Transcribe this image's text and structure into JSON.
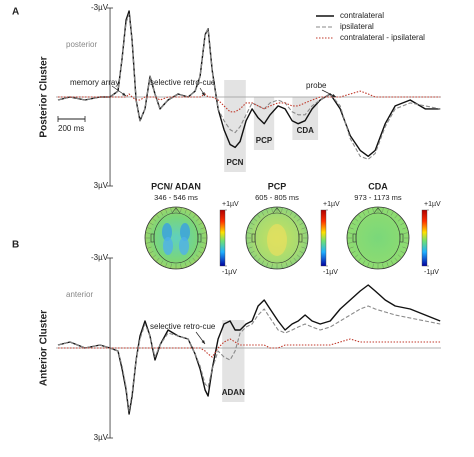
{
  "chart_data": [
    {
      "type": "line",
      "panel": "A",
      "ylabel": "Posterior Cluster",
      "region": "posterior",
      "xlim": [
        -400,
        2450
      ],
      "ylim": [
        3,
        -3
      ],
      "yticks": [
        {
          "value": -3,
          "label": "-3µV"
        },
        {
          "value": 3,
          "label": "3µV"
        }
      ],
      "x": [
        -385,
        -296,
        -185,
        -74,
        0,
        59,
        89,
        119,
        141,
        163,
        193,
        222,
        259,
        296,
        333,
        370,
        430,
        504,
        578,
        630,
        667,
        704,
        726,
        756,
        800,
        844,
        889,
        926,
        963,
        1007,
        1052,
        1096,
        1141,
        1185,
        1244,
        1296,
        1348,
        1393,
        1444,
        1496,
        1556,
        1630,
        1704,
        1778,
        1852,
        1911,
        1963,
        2037,
        2111,
        2222,
        2333,
        2444
      ],
      "legend": "upper right",
      "series": [
        {
          "name": "contralateral",
          "color": "#111111",
          "dash": "solid",
          "values": [
            0.1,
            0,
            0.1,
            0,
            0,
            -0.2,
            -1.3,
            -2.6,
            -2.9,
            -1.9,
            0.1,
            0.8,
            0.4,
            -0.7,
            -0.1,
            0.4,
            0.1,
            -0.1,
            0,
            -0.2,
            -0.7,
            -2.1,
            -2.3,
            -0.9,
            0.4,
            1.1,
            1.6,
            1.7,
            1.5,
            0.8,
            0.4,
            0.7,
            0.9,
            0.6,
            0.3,
            0.4,
            0.8,
            0.9,
            0.8,
            0.4,
            0.1,
            -0.1,
            0.4,
            1.3,
            1.8,
            2.0,
            1.8,
            0.9,
            0.3,
            0.1,
            0.4,
            0.4
          ]
        },
        {
          "name": "ipsilateral",
          "color": "#8a8a8a",
          "dash": "dashed",
          "values": [
            0.1,
            0,
            0.1,
            0,
            0,
            -0.2,
            -1.3,
            -2.5,
            -2.8,
            -1.9,
            0.1,
            0.8,
            0.4,
            -0.7,
            -0.1,
            0.4,
            0.1,
            -0.1,
            0,
            -0.2,
            -0.7,
            -2.1,
            -2.3,
            -0.9,
            0.4,
            0.8,
            1.1,
            1.2,
            1.0,
            0.6,
            0.2,
            0.3,
            0.4,
            0.2,
            0.1,
            0.2,
            0.5,
            0.6,
            0.6,
            0.3,
            0.1,
            -0.1,
            0.3,
            1.4,
            2.0,
            2.1,
            1.9,
            1.0,
            0.4,
            0.2,
            0.3,
            0.4
          ]
        },
        {
          "name": "contralateral - ipsilateral",
          "color": "#c0392b",
          "dash": "dotted",
          "values": [
            0,
            0,
            0,
            0,
            0,
            0,
            0,
            0,
            -0.1,
            0,
            0.1,
            0.1,
            0,
            0,
            0,
            0.1,
            0,
            0,
            0,
            0,
            0,
            -0.1,
            0,
            0,
            0.1,
            0.3,
            0.5,
            0.5,
            0.4,
            0.2,
            0.2,
            0.3,
            0.4,
            0.3,
            0.2,
            0.2,
            0.3,
            0.3,
            0.2,
            0.1,
            0,
            0,
            0,
            -0.1,
            -0.2,
            -0.1,
            0,
            0,
            0,
            0,
            0,
            0
          ]
        }
      ],
      "windows": [
        {
          "label": "PCN",
          "range": [
            845,
            1005
          ]
        },
        {
          "label": "PCP",
          "range": [
            1065,
            1215
          ]
        },
        {
          "label": "CDA",
          "range": [
            1350,
            1540
          ]
        }
      ],
      "annotations": [
        "memory array",
        "selective retro-cue",
        "probe"
      ],
      "scalebar": {
        "value": 200,
        "label": "200 ms"
      }
    },
    {
      "type": "line",
      "panel": "B",
      "ylabel": "Anterior Cluster",
      "region": "anterior",
      "xlim": [
        -400,
        2450
      ],
      "ylim": [
        3,
        -3
      ],
      "yticks": [
        {
          "value": -3,
          "label": "-3µV"
        },
        {
          "value": 3,
          "label": "3µV"
        }
      ],
      "x": [
        -385,
        -296,
        -185,
        -74,
        0,
        59,
        89,
        119,
        141,
        163,
        193,
        222,
        259,
        296,
        333,
        370,
        430,
        504,
        578,
        630,
        667,
        704,
        726,
        756,
        800,
        844,
        889,
        926,
        963,
        1007,
        1052,
        1096,
        1141,
        1185,
        1244,
        1296,
        1348,
        1393,
        1444,
        1496,
        1556,
        1630,
        1704,
        1778,
        1852,
        1911,
        1963,
        2037,
        2111,
        2222,
        2333,
        2444
      ],
      "series": [
        {
          "color": "#111111",
          "dash": "solid",
          "values": [
            -0.1,
            -0.2,
            0,
            -0.1,
            0,
            0.1,
            0.7,
            1.4,
            2.2,
            1.6,
            0.4,
            -0.4,
            -0.9,
            -0.4,
            0.4,
            -0.1,
            -0.6,
            -0.4,
            -0.3,
            0.2,
            0.7,
            1.4,
            1.6,
            0.7,
            -0.3,
            -0.8,
            -0.9,
            -0.6,
            -0.6,
            -0.8,
            -0.9,
            -1.4,
            -1.6,
            -1.3,
            -0.9,
            -0.6,
            -0.8,
            -0.9,
            -1.1,
            -0.9,
            -0.8,
            -0.9,
            -1.3,
            -1.6,
            -1.9,
            -2.1,
            -1.9,
            -1.6,
            -1.4,
            -1.3,
            -1.1,
            -0.9
          ]
        },
        {
          "color": "#8a8a8a",
          "dash": "dashed",
          "values": [
            -0.1,
            -0.2,
            0,
            -0.1,
            0,
            0.1,
            0.6,
            1.3,
            2.1,
            1.5,
            0.4,
            -0.3,
            -0.8,
            -0.4,
            0.3,
            -0.1,
            -0.5,
            -0.4,
            -0.3,
            0.2,
            0.6,
            1.2,
            1.3,
            0.7,
            0.1,
            0.3,
            0.4,
            0.1,
            -0.5,
            -0.7,
            -0.8,
            -1.1,
            -1.3,
            -1.0,
            -0.6,
            -0.5,
            -0.6,
            -0.7,
            -0.8,
            -0.7,
            -0.6,
            -0.7,
            -0.9,
            -1.1,
            -1.3,
            -1.4,
            -1.3,
            -1.2,
            -1.1,
            -1.0,
            -0.9,
            -0.8
          ]
        },
        {
          "color": "#c0392b",
          "dash": "dotted",
          "values": [
            0,
            0,
            0,
            0,
            0,
            0,
            0,
            0,
            0,
            0,
            0,
            0,
            0,
            0,
            0,
            0,
            0,
            0,
            0,
            0,
            0,
            0.1,
            0.2,
            0.3,
            0,
            -0.2,
            -0.3,
            -0.2,
            -0.1,
            -0.1,
            -0.1,
            -0.1,
            -0.1,
            0,
            0,
            -0.1,
            -0.1,
            -0.1,
            -0.1,
            -0.1,
            -0.1,
            -0.1,
            -0.2,
            -0.3,
            -0.2,
            -0.2,
            -0.2,
            -0.2,
            -0.2,
            -0.2,
            -0.2,
            -0.2
          ]
        }
      ],
      "windows": [
        {
          "label": "ADAN",
          "range": [
            830,
            995
          ]
        }
      ],
      "annotations": [
        "selective retro-cue"
      ]
    }
  ],
  "topomaps": [
    {
      "title": "PCN/ ADAN",
      "window": "346 - 546 ms"
    },
    {
      "title": "PCP",
      "window": "605 - 805 ms"
    },
    {
      "title": "CDA",
      "window": "973 - 1173 ms"
    }
  ],
  "colorbar_ticks": [
    {
      "value": 1,
      "label": "+1µV"
    },
    {
      "value": -1,
      "label": "-1µV"
    }
  ]
}
